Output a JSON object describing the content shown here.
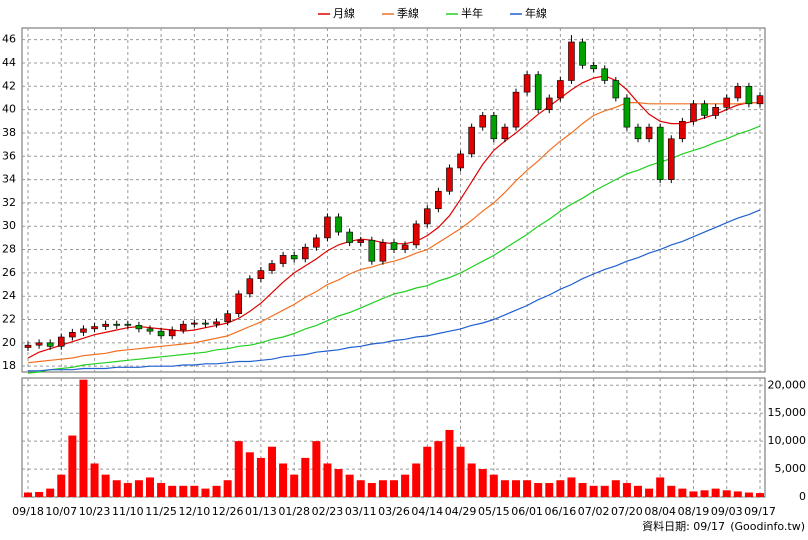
{
  "chart_data": [
    {
      "type": "candlestick",
      "categories": [
        "09/18",
        null,
        null,
        "10/07",
        null,
        null,
        "10/23",
        null,
        null,
        "11/10",
        null,
        null,
        "11/25",
        null,
        null,
        "12/10",
        null,
        null,
        "12/26",
        null,
        null,
        "01/13",
        null,
        null,
        "01/28",
        null,
        null,
        "02/23",
        null,
        null,
        "03/11",
        null,
        null,
        "03/26",
        null,
        null,
        "04/14",
        null,
        null,
        "04/29",
        null,
        null,
        "05/15",
        null,
        null,
        "06/01",
        null,
        null,
        "06/16",
        null,
        null,
        "07/02",
        null,
        null,
        "07/20",
        null,
        null,
        "08/04",
        null,
        null,
        "08/19",
        null,
        null,
        "09/03",
        null,
        null,
        "09/17"
      ],
      "open": [
        19.6,
        19.8,
        20.0,
        19.7,
        20.5,
        20.9,
        21.2,
        21.4,
        21.6,
        21.6,
        21.5,
        21.2,
        21.0,
        20.6,
        21.1,
        21.6,
        21.7,
        21.6,
        21.8,
        22.5,
        24.2,
        25.5,
        26.2,
        26.8,
        27.5,
        27.2,
        28.2,
        29.0,
        30.8,
        29.5,
        28.6,
        28.8,
        27.0,
        28.6,
        28.0,
        28.4,
        30.2,
        31.5,
        33.0,
        35.0,
        36.2,
        38.5,
        39.5,
        37.5,
        38.5,
        41.5,
        43.0,
        40.0,
        41.0,
        42.5,
        45.8,
        43.8,
        43.5,
        42.5,
        41.0,
        38.5,
        37.5,
        38.5,
        34.0,
        37.5,
        39.0,
        40.5,
        39.5,
        40.2,
        41.0,
        42.0,
        40.5
      ],
      "high": [
        20.1,
        20.3,
        20.3,
        20.8,
        21.2,
        21.5,
        21.7,
        21.9,
        21.9,
        21.9,
        21.8,
        21.5,
        21.3,
        21.4,
        21.9,
        22.0,
        22.0,
        22.1,
        22.8,
        24.5,
        25.8,
        26.5,
        27.1,
        27.8,
        27.8,
        28.5,
        29.3,
        31.1,
        31.1,
        29.8,
        29.1,
        29.1,
        28.9,
        28.9,
        28.7,
        30.5,
        31.8,
        33.3,
        35.3,
        36.5,
        38.8,
        39.8,
        39.8,
        38.8,
        41.8,
        43.3,
        43.3,
        41.3,
        42.8,
        46.4,
        46.1,
        44.1,
        43.8,
        42.8,
        41.3,
        38.8,
        38.8,
        38.8,
        37.8,
        39.3,
        40.8,
        40.8,
        40.5,
        41.3,
        42.3,
        42.3,
        41.5
      ],
      "low": [
        19.3,
        19.5,
        19.4,
        19.4,
        20.2,
        20.6,
        20.9,
        21.1,
        21.2,
        21.2,
        20.9,
        20.7,
        20.3,
        20.3,
        20.8,
        21.3,
        21.3,
        21.3,
        21.5,
        22.2,
        23.9,
        25.2,
        25.9,
        26.5,
        26.9,
        26.9,
        27.9,
        28.7,
        29.2,
        28.3,
        28.3,
        26.7,
        26.7,
        27.7,
        27.7,
        28.1,
        29.9,
        31.2,
        32.7,
        34.7,
        35.9,
        38.2,
        37.2,
        37.2,
        38.2,
        41.2,
        39.7,
        39.7,
        40.7,
        42.2,
        43.5,
        43.2,
        42.2,
        40.7,
        38.2,
        37.2,
        37.2,
        33.7,
        33.7,
        37.2,
        38.7,
        39.2,
        39.2,
        39.9,
        40.7,
        40.2,
        40.2
      ],
      "close": [
        19.8,
        20.0,
        19.7,
        20.5,
        20.9,
        21.2,
        21.4,
        21.6,
        21.5,
        21.5,
        21.2,
        21.0,
        20.6,
        21.1,
        21.6,
        21.7,
        21.6,
        21.8,
        22.5,
        24.2,
        25.5,
        26.2,
        26.8,
        27.5,
        27.2,
        28.2,
        29.0,
        30.8,
        29.5,
        28.6,
        28.8,
        27.0,
        28.6,
        28.0,
        28.4,
        30.2,
        31.5,
        33.0,
        35.0,
        36.2,
        38.5,
        39.5,
        37.5,
        38.5,
        41.5,
        43.0,
        40.0,
        41.0,
        42.5,
        45.8,
        43.8,
        43.5,
        42.5,
        41.0,
        38.5,
        37.5,
        38.5,
        34.0,
        37.5,
        39.0,
        40.5,
        39.5,
        40.2,
        41.0,
        42.0,
        40.5,
        41.2
      ],
      "up_color": "#e00000",
      "down_color": "#00a000",
      "series": [
        {
          "name": "月線",
          "color": "#e00000",
          "values": [
            18.7,
            19.2,
            19.5,
            19.8,
            20.1,
            20.4,
            20.7,
            20.9,
            21.1,
            21.3,
            21.4,
            21.3,
            21.2,
            21.1,
            21.0,
            21.1,
            21.3,
            21.5,
            21.7,
            22.1,
            22.7,
            23.4,
            24.3,
            25.2,
            26.0,
            26.6,
            27.2,
            27.9,
            28.4,
            28.7,
            28.9,
            28.8,
            28.6,
            28.5,
            28.5,
            28.7,
            29.2,
            29.9,
            30.9,
            32.3,
            33.8,
            35.3,
            36.5,
            37.3,
            38.0,
            38.8,
            39.6,
            40.3,
            41.0,
            41.7,
            42.3,
            42.7,
            42.9,
            42.5,
            41.7,
            40.6,
            39.6,
            39.0,
            38.8,
            38.8,
            39.0,
            39.3,
            39.6,
            40.0,
            40.4,
            40.6,
            40.6
          ]
        },
        {
          "name": "季線",
          "color": "#f07020",
          "values": [
            18.3,
            18.4,
            18.5,
            18.6,
            18.7,
            18.9,
            19.0,
            19.1,
            19.3,
            19.4,
            19.5,
            19.6,
            19.7,
            19.8,
            19.9,
            20.0,
            20.2,
            20.4,
            20.6,
            21.0,
            21.4,
            21.8,
            22.3,
            22.8,
            23.3,
            23.9,
            24.4,
            25.0,
            25.4,
            25.9,
            26.3,
            26.5,
            26.8,
            27.0,
            27.3,
            27.7,
            28.0,
            28.6,
            29.2,
            29.8,
            30.5,
            31.3,
            32.0,
            32.9,
            33.9,
            34.8,
            35.6,
            36.5,
            37.3,
            38.0,
            38.8,
            39.5,
            39.9,
            40.2,
            40.6,
            40.6,
            40.5,
            40.5,
            40.5,
            40.5,
            40.5,
            40.5,
            40.5,
            40.5,
            40.5,
            40.6,
            40.6
          ]
        },
        {
          "name": "半年",
          "color": "#20d020",
          "values": [
            17.4,
            17.5,
            17.7,
            17.8,
            17.9,
            18.1,
            18.2,
            18.3,
            18.4,
            18.5,
            18.6,
            18.7,
            18.8,
            18.9,
            19.0,
            19.1,
            19.2,
            19.4,
            19.5,
            19.7,
            19.8,
            20.0,
            20.3,
            20.5,
            20.8,
            21.2,
            21.5,
            21.9,
            22.3,
            22.6,
            23.0,
            23.4,
            23.8,
            24.2,
            24.4,
            24.7,
            24.9,
            25.3,
            25.6,
            26.0,
            26.5,
            27.0,
            27.5,
            28.1,
            28.7,
            29.3,
            30.0,
            30.6,
            31.3,
            31.9,
            32.4,
            33.0,
            33.5,
            34.0,
            34.5,
            34.8,
            35.2,
            35.5,
            35.8,
            36.2,
            36.5,
            36.8,
            37.2,
            37.5,
            37.9,
            38.2,
            38.6
          ]
        },
        {
          "name": "年線",
          "color": "#1f5fd0",
          "values": [
            17.6,
            17.6,
            17.7,
            17.7,
            17.7,
            17.8,
            17.8,
            17.8,
            17.9,
            17.9,
            17.9,
            18.0,
            18.0,
            18.0,
            18.1,
            18.1,
            18.2,
            18.2,
            18.3,
            18.4,
            18.4,
            18.5,
            18.6,
            18.8,
            18.9,
            19.0,
            19.2,
            19.3,
            19.4,
            19.6,
            19.7,
            19.9,
            20.0,
            20.2,
            20.3,
            20.5,
            20.6,
            20.8,
            21.0,
            21.2,
            21.5,
            21.7,
            22.0,
            22.4,
            22.8,
            23.2,
            23.7,
            24.1,
            24.6,
            25.0,
            25.5,
            25.9,
            26.3,
            26.6,
            27.0,
            27.3,
            27.7,
            28.0,
            28.4,
            28.7,
            29.1,
            29.5,
            29.9,
            30.3,
            30.7,
            31.0,
            31.4
          ]
        }
      ],
      "ylim": [
        17.5,
        47
      ],
      "yticks": [
        18,
        20,
        22,
        24,
        26,
        28,
        30,
        32,
        34,
        36,
        38,
        40,
        42,
        44,
        46
      ],
      "grid": true
    },
    {
      "type": "bar",
      "color": "#ff0000",
      "values": [
        800,
        900,
        1500,
        4000,
        11000,
        21000,
        6000,
        4000,
        3000,
        2500,
        3000,
        3500,
        2500,
        2000,
        2000,
        2000,
        1500,
        2000,
        3000,
        10000,
        8000,
        7000,
        9000,
        6000,
        4000,
        7000,
        10000,
        6000,
        5000,
        4000,
        3000,
        2500,
        3000,
        3000,
        4000,
        6000,
        9000,
        10000,
        12000,
        9000,
        6000,
        5000,
        4000,
        3000,
        3000,
        3000,
        2500,
        2500,
        3000,
        3500,
        2500,
        2000,
        2000,
        3000,
        2500,
        2000,
        1500,
        3500,
        2000,
        1500,
        1000,
        1200,
        1500,
        1200,
        1000,
        800,
        700
      ],
      "ylim": [
        0,
        21300
      ],
      "yticks": [
        0,
        {
          "value": 5000,
          "label": "5,000"
        },
        {
          "value": 10000,
          "label": "10,000"
        },
        {
          "value": 15000,
          "label": "15,000"
        },
        {
          "value": 20000,
          "label": "20,000"
        }
      ],
      "grid": true
    }
  ],
  "footer": {
    "date": "資料日期: 09/17",
    "source": "(Goodinfo.tw)"
  }
}
